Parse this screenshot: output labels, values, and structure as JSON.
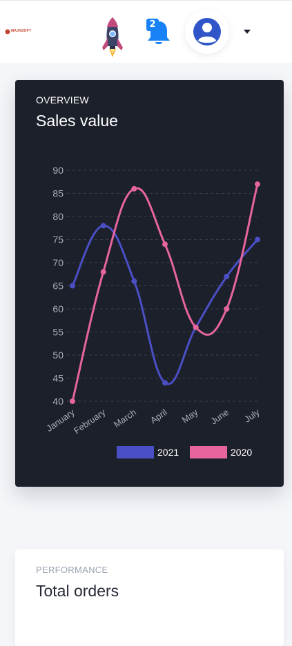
{
  "header": {
    "logo_text": "MAJNSOFT",
    "notification_count": "2",
    "colors": {
      "badge": "#1a82f7",
      "icon_blue": "#2f66d8"
    }
  },
  "sales_card": {
    "overline": "OVERVIEW",
    "title": "Sales value"
  },
  "chart_data": {
    "type": "line",
    "categories": [
      "January",
      "February",
      "March",
      "April",
      "May",
      "June",
      "July"
    ],
    "ylim": [
      40,
      90
    ],
    "yticks": [
      90,
      85,
      80,
      75,
      70,
      65,
      60,
      55,
      50,
      45,
      40
    ],
    "grid": true,
    "legend_position": "bottom-right",
    "series": [
      {
        "name": "2021",
        "values": [
          65,
          78,
          66,
          44,
          56,
          67,
          75
        ],
        "color": "#4b4fc5"
      },
      {
        "name": "2020",
        "values": [
          40,
          68,
          86,
          74,
          56,
          60,
          87
        ],
        "color": "#e6659d"
      }
    ]
  },
  "orders_card": {
    "overline": "PERFORMANCE",
    "title": "Total orders"
  }
}
